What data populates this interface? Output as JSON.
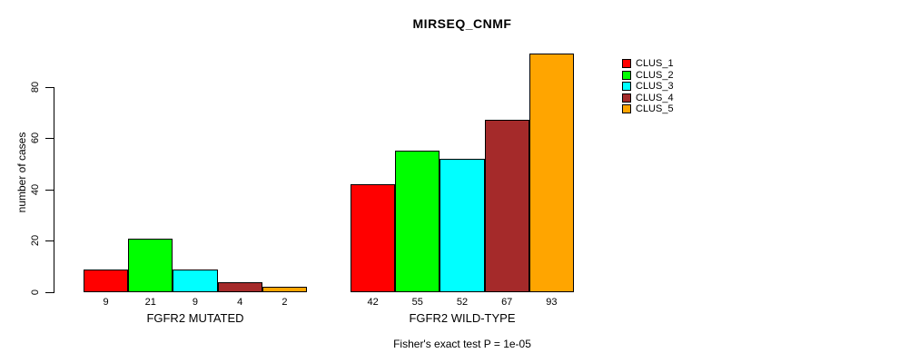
{
  "chart_data": {
    "type": "bar",
    "title": "MIRSEQ_CNMF",
    "ylabel": "number of cases",
    "xlabel": "",
    "yticks": [
      0,
      20,
      40,
      60,
      80
    ],
    "ylim": [
      0,
      93
    ],
    "grid": false,
    "legend_position": "right",
    "series": [
      {
        "name": "CLUS_1",
        "color": "#FF0000"
      },
      {
        "name": "CLUS_2",
        "color": "#00FF00"
      },
      {
        "name": "CLUS_3",
        "color": "#00FFFF"
      },
      {
        "name": "CLUS_4",
        "color": "#A52A2A"
      },
      {
        "name": "CLUS_5",
        "color": "#FFA500"
      }
    ],
    "groups": [
      {
        "label": "FGFR2 MUTATED",
        "values": [
          9,
          21,
          9,
          4,
          2
        ]
      },
      {
        "label": "FGFR2 WILD-TYPE",
        "values": [
          42,
          55,
          52,
          67,
          93
        ]
      }
    ],
    "bar_value_labels_shown": true,
    "footer": "Fisher's exact test P = 1e-05",
    "colors": {
      "background": "#FFFFFF",
      "axis": "#000000",
      "text": "#000000"
    }
  }
}
